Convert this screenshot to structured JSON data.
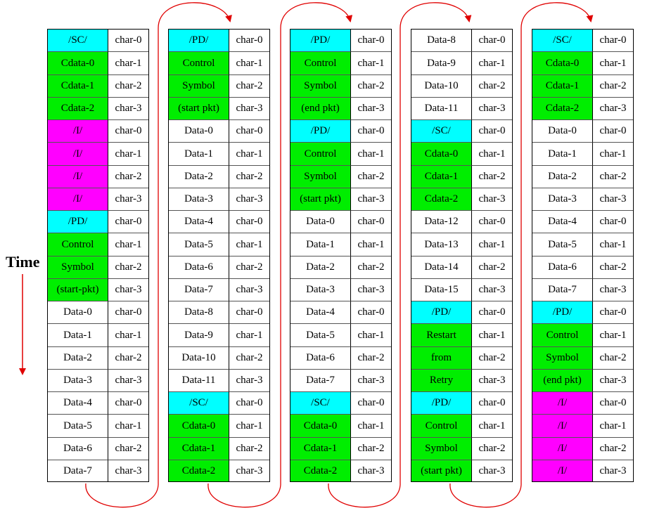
{
  "time_label": "Time",
  "colors": {
    "cyan": "#00ffff",
    "green": "#00ee00",
    "magenta": "#ff00ff",
    "white": "#ffffff",
    "arrow": "#e00000"
  },
  "columns": [
    {
      "rows": [
        {
          "symbol": "/SC/",
          "char": "char-0",
          "color": "cyan"
        },
        {
          "symbol": "Cdata-0",
          "char": "char-1",
          "color": "green"
        },
        {
          "symbol": "Cdata-1",
          "char": "char-2",
          "color": "green"
        },
        {
          "symbol": "Cdata-2",
          "char": "char-3",
          "color": "green"
        },
        {
          "symbol": "/I/",
          "char": "char-0",
          "color": "magenta"
        },
        {
          "symbol": "/I/",
          "char": "char-1",
          "color": "magenta"
        },
        {
          "symbol": "/I/",
          "char": "char-2",
          "color": "magenta"
        },
        {
          "symbol": "/I/",
          "char": "char-3",
          "color": "magenta"
        },
        {
          "symbol": "/PD/",
          "char": "char-0",
          "color": "cyan"
        },
        {
          "symbol": "Control",
          "char": "char-1",
          "color": "green"
        },
        {
          "symbol": "Symbol",
          "char": "char-2",
          "color": "green"
        },
        {
          "symbol": "(start-pkt)",
          "char": "char-3",
          "color": "green"
        },
        {
          "symbol": "Data-0",
          "char": "char-0",
          "color": "white"
        },
        {
          "symbol": "Data-1",
          "char": "char-1",
          "color": "white"
        },
        {
          "symbol": "Data-2",
          "char": "char-2",
          "color": "white"
        },
        {
          "symbol": "Data-3",
          "char": "char-3",
          "color": "white"
        },
        {
          "symbol": "Data-4",
          "char": "char-0",
          "color": "white"
        },
        {
          "symbol": "Data-5",
          "char": "char-1",
          "color": "white"
        },
        {
          "symbol": "Data-6",
          "char": "char-2",
          "color": "white"
        },
        {
          "symbol": "Data-7",
          "char": "char-3",
          "color": "white"
        }
      ]
    },
    {
      "rows": [
        {
          "symbol": "/PD/",
          "char": "char-0",
          "color": "cyan"
        },
        {
          "symbol": "Control",
          "char": "char-1",
          "color": "green"
        },
        {
          "symbol": "Symbol",
          "char": "char-2",
          "color": "green"
        },
        {
          "symbol": "(start pkt)",
          "char": "char-3",
          "color": "green"
        },
        {
          "symbol": "Data-0",
          "char": "char-0",
          "color": "white"
        },
        {
          "symbol": "Data-1",
          "char": "char-1",
          "color": "white"
        },
        {
          "symbol": "Data-2",
          "char": "char-2",
          "color": "white"
        },
        {
          "symbol": "Data-3",
          "char": "char-3",
          "color": "white"
        },
        {
          "symbol": "Data-4",
          "char": "char-0",
          "color": "white"
        },
        {
          "symbol": "Data-5",
          "char": "char-1",
          "color": "white"
        },
        {
          "symbol": "Data-6",
          "char": "char-2",
          "color": "white"
        },
        {
          "symbol": "Data-7",
          "char": "char-3",
          "color": "white"
        },
        {
          "symbol": "Data-8",
          "char": "char-0",
          "color": "white"
        },
        {
          "symbol": "Data-9",
          "char": "char-1",
          "color": "white"
        },
        {
          "symbol": "Data-10",
          "char": "char-2",
          "color": "white"
        },
        {
          "symbol": "Data-11",
          "char": "char-3",
          "color": "white"
        },
        {
          "symbol": "/SC/",
          "char": "char-0",
          "color": "cyan"
        },
        {
          "symbol": "Cdata-0",
          "char": "char-1",
          "color": "green"
        },
        {
          "symbol": "Cdata-1",
          "char": "char-2",
          "color": "green"
        },
        {
          "symbol": "Cdata-2",
          "char": "char-3",
          "color": "green"
        }
      ]
    },
    {
      "rows": [
        {
          "symbol": "/PD/",
          "char": "char-0",
          "color": "cyan"
        },
        {
          "symbol": "Control",
          "char": "char-1",
          "color": "green"
        },
        {
          "symbol": "Symbol",
          "char": "char-2",
          "color": "green"
        },
        {
          "symbol": "(end pkt)",
          "char": "char-3",
          "color": "green"
        },
        {
          "symbol": "/PD/",
          "char": "char-0",
          "color": "cyan"
        },
        {
          "symbol": "Control",
          "char": "char-1",
          "color": "green"
        },
        {
          "symbol": "Symbol",
          "char": "char-2",
          "color": "green"
        },
        {
          "symbol": "(start pkt)",
          "char": "char-3",
          "color": "green"
        },
        {
          "symbol": "Data-0",
          "char": "char-0",
          "color": "white"
        },
        {
          "symbol": "Data-1",
          "char": "char-1",
          "color": "white"
        },
        {
          "symbol": "Data-2",
          "char": "char-2",
          "color": "white"
        },
        {
          "symbol": "Data-3",
          "char": "char-3",
          "color": "white"
        },
        {
          "symbol": "Data-4",
          "char": "char-0",
          "color": "white"
        },
        {
          "symbol": "Data-5",
          "char": "char-1",
          "color": "white"
        },
        {
          "symbol": "Data-6",
          "char": "char-2",
          "color": "white"
        },
        {
          "symbol": "Data-7",
          "char": "char-3",
          "color": "white"
        },
        {
          "symbol": "/SC/",
          "char": "char-0",
          "color": "cyan"
        },
        {
          "symbol": "Cdata-0",
          "char": "char-1",
          "color": "green"
        },
        {
          "symbol": "Cdata-1",
          "char": "char-2",
          "color": "green"
        },
        {
          "symbol": "Cdata-2",
          "char": "char-3",
          "color": "green"
        }
      ]
    },
    {
      "rows": [
        {
          "symbol": "Data-8",
          "char": "char-0",
          "color": "white"
        },
        {
          "symbol": "Data-9",
          "char": "char-1",
          "color": "white"
        },
        {
          "symbol": "Data-10",
          "char": "char-2",
          "color": "white"
        },
        {
          "symbol": "Data-11",
          "char": "char-3",
          "color": "white"
        },
        {
          "symbol": "/SC/",
          "char": "char-0",
          "color": "cyan"
        },
        {
          "symbol": "Cdata-0",
          "char": "char-1",
          "color": "green"
        },
        {
          "symbol": "Cdata-1",
          "char": "char-2",
          "color": "green"
        },
        {
          "symbol": "Cdata-2",
          "char": "char-3",
          "color": "green"
        },
        {
          "symbol": "Data-12",
          "char": "char-0",
          "color": "white"
        },
        {
          "symbol": "Data-13",
          "char": "char-1",
          "color": "white"
        },
        {
          "symbol": "Data-14",
          "char": "char-2",
          "color": "white"
        },
        {
          "symbol": "Data-15",
          "char": "char-3",
          "color": "white"
        },
        {
          "symbol": "/PD/",
          "char": "char-0",
          "color": "cyan"
        },
        {
          "symbol": "Restart",
          "char": "char-1",
          "color": "green"
        },
        {
          "symbol": "from",
          "char": "char-2",
          "color": "green"
        },
        {
          "symbol": "Retry",
          "char": "char-3",
          "color": "green"
        },
        {
          "symbol": "/PD/",
          "char": "char-0",
          "color": "cyan"
        },
        {
          "symbol": "Control",
          "char": "char-1",
          "color": "green"
        },
        {
          "symbol": "Symbol",
          "char": "char-2",
          "color": "green"
        },
        {
          "symbol": "(start pkt)",
          "char": "char-3",
          "color": "green"
        }
      ]
    },
    {
      "rows": [
        {
          "symbol": "/SC/",
          "char": "char-0",
          "color": "cyan"
        },
        {
          "symbol": "Cdata-0",
          "char": "char-1",
          "color": "green"
        },
        {
          "symbol": "Cdata-1",
          "char": "char-2",
          "color": "green"
        },
        {
          "symbol": "Cdata-2",
          "char": "char-3",
          "color": "green"
        },
        {
          "symbol": "Data-0",
          "char": "char-0",
          "color": "white"
        },
        {
          "symbol": "Data-1",
          "char": "char-1",
          "color": "white"
        },
        {
          "symbol": "Data-2",
          "char": "char-2",
          "color": "white"
        },
        {
          "symbol": "Data-3",
          "char": "char-3",
          "color": "white"
        },
        {
          "symbol": "Data-4",
          "char": "char-0",
          "color": "white"
        },
        {
          "symbol": "Data-5",
          "char": "char-1",
          "color": "white"
        },
        {
          "symbol": "Data-6",
          "char": "char-2",
          "color": "white"
        },
        {
          "symbol": "Data-7",
          "char": "char-3",
          "color": "white"
        },
        {
          "symbol": "/PD/",
          "char": "char-0",
          "color": "cyan"
        },
        {
          "symbol": "Control",
          "char": "char-1",
          "color": "green"
        },
        {
          "symbol": "Symbol",
          "char": "char-2",
          "color": "green"
        },
        {
          "symbol": "(end pkt)",
          "char": "char-3",
          "color": "green"
        },
        {
          "symbol": "/I/",
          "char": "char-0",
          "color": "magenta"
        },
        {
          "symbol": "/I/",
          "char": "char-1",
          "color": "magenta"
        },
        {
          "symbol": "/I/",
          "char": "char-2",
          "color": "magenta"
        },
        {
          "symbol": "/I/",
          "char": "char-3",
          "color": "magenta"
        }
      ]
    }
  ]
}
